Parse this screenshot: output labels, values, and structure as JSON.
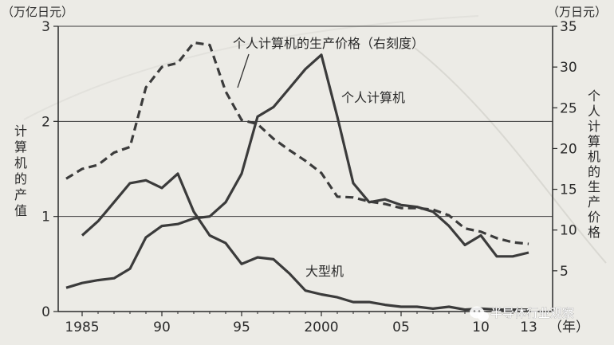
{
  "chart_data": {
    "type": "line",
    "left_axis": {
      "unit_label": "（万亿日元）",
      "title": "计算机的产值",
      "ylim": [
        0,
        3
      ],
      "ticks": [
        "0",
        "1",
        "2",
        "3"
      ]
    },
    "right_axis": {
      "unit_label": "（万日元）",
      "title": "个人计算机的生产价格",
      "ylim": [
        0,
        35
      ],
      "ticks": [
        "5",
        "10",
        "15",
        "20",
        "25",
        "30",
        "35"
      ]
    },
    "x_axis": {
      "unit_label": "（年）",
      "xlim": [
        1984,
        2014
      ],
      "ticks": [
        {
          "year": 1985,
          "label": "1985"
        },
        {
          "year": 1990,
          "label": "90"
        },
        {
          "year": 1995,
          "label": "95"
        },
        {
          "year": 2000,
          "label": "2000"
        },
        {
          "year": 2005,
          "label": "05"
        },
        {
          "year": 2010,
          "label": "10"
        },
        {
          "year": 2013,
          "label": "13"
        }
      ]
    },
    "gridlines_left": [
      1,
      2,
      3
    ],
    "series": [
      {
        "name": "个人计算机",
        "axis": "left",
        "style": "solid",
        "x": [
          1984,
          1985,
          1986,
          1987,
          1988,
          1989,
          1990,
          1991,
          1992,
          1993,
          1994,
          1995,
          1996,
          1997,
          1998,
          1999,
          2000,
          2001,
          2002,
          2003,
          2004,
          2005,
          2006,
          2007,
          2008,
          2009,
          2010,
          2011,
          2012,
          2013
        ],
        "y": [
          0.25,
          0.3,
          0.33,
          0.35,
          0.45,
          0.78,
          0.9,
          0.92,
          0.98,
          1.0,
          1.15,
          1.45,
          2.05,
          2.15,
          2.35,
          2.55,
          2.7,
          2.05,
          1.35,
          1.15,
          1.18,
          1.12,
          1.1,
          1.05,
          0.9,
          0.7,
          0.8,
          0.58,
          0.58,
          0.62
        ]
      },
      {
        "name": "大型机",
        "axis": "left",
        "style": "solid",
        "x": [
          1985,
          1986,
          1987,
          1988,
          1989,
          1990,
          1991,
          1992,
          1993,
          1994,
          1995,
          1996,
          1997,
          1998,
          1999,
          2000,
          2001,
          2002,
          2003,
          2004,
          2005,
          2006,
          2007,
          2008,
          2009,
          2010,
          2011,
          2012,
          2013
        ],
        "y": [
          0.8,
          0.95,
          1.15,
          1.35,
          1.38,
          1.3,
          1.45,
          1.05,
          0.8,
          0.72,
          0.5,
          0.57,
          0.55,
          0.4,
          0.22,
          0.18,
          0.15,
          0.1,
          0.1,
          0.07,
          0.05,
          0.05,
          0.03,
          0.05,
          0.02,
          0.03,
          0.02,
          0.02,
          0.02
        ]
      },
      {
        "name": "个人计算机的生产价格（右刻度）",
        "axis": "right",
        "style": "dashed",
        "x": [
          1984,
          1985,
          1986,
          1987,
          1988,
          1989,
          1990,
          1991,
          1992,
          1993,
          1994,
          1995,
          1996,
          1997,
          1998,
          1999,
          2000,
          2001,
          2002,
          2003,
          2004,
          2005,
          2006,
          2007,
          2008,
          2009,
          2010,
          2011,
          2012,
          2013
        ],
        "y": [
          16.3,
          17.5,
          18.0,
          19.5,
          20.2,
          27.5,
          30.0,
          30.5,
          33.0,
          32.7,
          27.0,
          23.5,
          23.0,
          21.2,
          19.8,
          18.5,
          17.0,
          14.1,
          14.0,
          13.5,
          13.2,
          12.7,
          12.7,
          12.5,
          11.8,
          10.2,
          9.8,
          9.0,
          8.5,
          8.3
        ]
      }
    ],
    "annotations": [
      {
        "text": "个人计算机的生产价格（右刻度）",
        "series": "个人计算机的生产价格（右刻度）"
      },
      {
        "text": "个人计算机",
        "series": "个人计算机"
      },
      {
        "text": "大型机",
        "series": "大型机"
      }
    ]
  },
  "watermark": {
    "icon": "wechat-icon",
    "text": "半导体行业观察"
  }
}
